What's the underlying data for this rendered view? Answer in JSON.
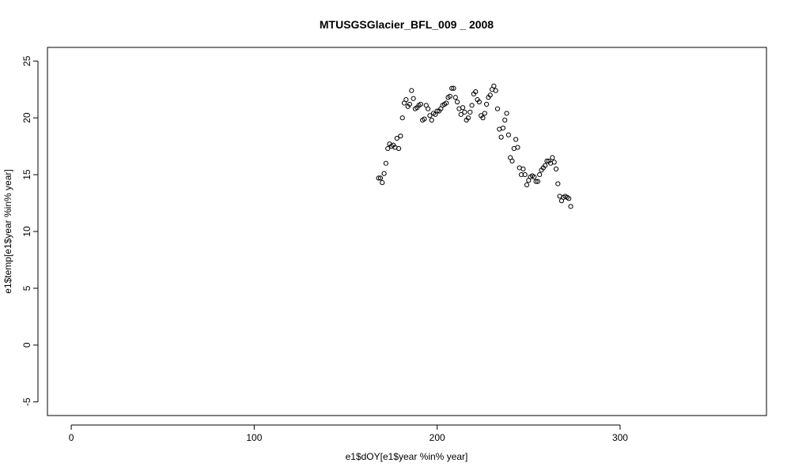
{
  "chart_data": {
    "type": "scatter",
    "title": "MTUSGSGlacier_BFL_009 _ 2008",
    "xlabel": "e1$dOY[e1$year %in% year]",
    "ylabel": "e1$temp[e1$year %in% year]",
    "xlim": [
      -13,
      380
    ],
    "ylim": [
      -6.2,
      26.2
    ],
    "xticks": [
      0,
      100,
      200,
      300
    ],
    "yticks": [
      -5,
      0,
      5,
      10,
      15,
      20,
      25
    ],
    "grid": false,
    "point_style": "open-circle",
    "point_color": "#000000",
    "points": [
      [
        168,
        14.7
      ],
      [
        169,
        14.7
      ],
      [
        170,
        14.3
      ],
      [
        171,
        15.1
      ],
      [
        172,
        16.0
      ],
      [
        173,
        17.3
      ],
      [
        174,
        17.7
      ],
      [
        175,
        17.5
      ],
      [
        176,
        17.6
      ],
      [
        177,
        17.4
      ],
      [
        178,
        18.2
      ],
      [
        179,
        17.3
      ],
      [
        180,
        18.4
      ],
      [
        181,
        20.0
      ],
      [
        182,
        21.3
      ],
      [
        183,
        21.6
      ],
      [
        184,
        21.0
      ],
      [
        185,
        21.2
      ],
      [
        186,
        22.4
      ],
      [
        187,
        21.7
      ],
      [
        188,
        20.8
      ],
      [
        189,
        20.9
      ],
      [
        190,
        21.1
      ],
      [
        191,
        21.2
      ],
      [
        192,
        19.8
      ],
      [
        193,
        19.9
      ],
      [
        194,
        21.1
      ],
      [
        195,
        20.8
      ],
      [
        196,
        20.2
      ],
      [
        197,
        19.8
      ],
      [
        198,
        20.4
      ],
      [
        199,
        20.3
      ],
      [
        200,
        20.6
      ],
      [
        201,
        20.6
      ],
      [
        202,
        20.8
      ],
      [
        203,
        21.1
      ],
      [
        204,
        21.2
      ],
      [
        205,
        21.3
      ],
      [
        206,
        21.8
      ],
      [
        207,
        21.9
      ],
      [
        208,
        22.6
      ],
      [
        209,
        22.6
      ],
      [
        210,
        21.8
      ],
      [
        211,
        21.4
      ],
      [
        212,
        20.8
      ],
      [
        213,
        20.3
      ],
      [
        214,
        20.9
      ],
      [
        215,
        20.5
      ],
      [
        216,
        19.8
      ],
      [
        217,
        20.0
      ],
      [
        218,
        20.5
      ],
      [
        219,
        21.1
      ],
      [
        220,
        22.1
      ],
      [
        221,
        22.3
      ],
      [
        222,
        21.6
      ],
      [
        223,
        21.4
      ],
      [
        224,
        20.2
      ],
      [
        225,
        20.0
      ],
      [
        226,
        20.4
      ],
      [
        227,
        21.2
      ],
      [
        228,
        21.8
      ],
      [
        229,
        22.0
      ],
      [
        230,
        22.5
      ],
      [
        231,
        22.8
      ],
      [
        232,
        22.4
      ],
      [
        233,
        20.8
      ],
      [
        234,
        19.0
      ],
      [
        235,
        18.3
      ],
      [
        236,
        19.1
      ],
      [
        237,
        19.8
      ],
      [
        238,
        20.4
      ],
      [
        239,
        18.5
      ],
      [
        240,
        16.5
      ],
      [
        241,
        16.2
      ],
      [
        242,
        17.3
      ],
      [
        243,
        18.1
      ],
      [
        244,
        17.4
      ],
      [
        245,
        15.6
      ],
      [
        246,
        15.0
      ],
      [
        247,
        15.5
      ],
      [
        248,
        15.0
      ],
      [
        249,
        14.1
      ],
      [
        250,
        14.5
      ],
      [
        251,
        14.8
      ],
      [
        252,
        14.9
      ],
      [
        253,
        14.8
      ],
      [
        254,
        14.4
      ],
      [
        255,
        14.4
      ],
      [
        256,
        15.0
      ],
      [
        257,
        15.4
      ],
      [
        258,
        15.6
      ],
      [
        259,
        15.8
      ],
      [
        260,
        16.2
      ],
      [
        261,
        16.2
      ],
      [
        262,
        16.0
      ],
      [
        263,
        16.5
      ],
      [
        264,
        16.1
      ],
      [
        265,
        15.5
      ],
      [
        266,
        14.2
      ],
      [
        267,
        13.1
      ],
      [
        268,
        12.7
      ],
      [
        269,
        13.0
      ],
      [
        270,
        13.1
      ],
      [
        271,
        13.0
      ],
      [
        272,
        12.9
      ],
      [
        273,
        12.2
      ]
    ]
  }
}
